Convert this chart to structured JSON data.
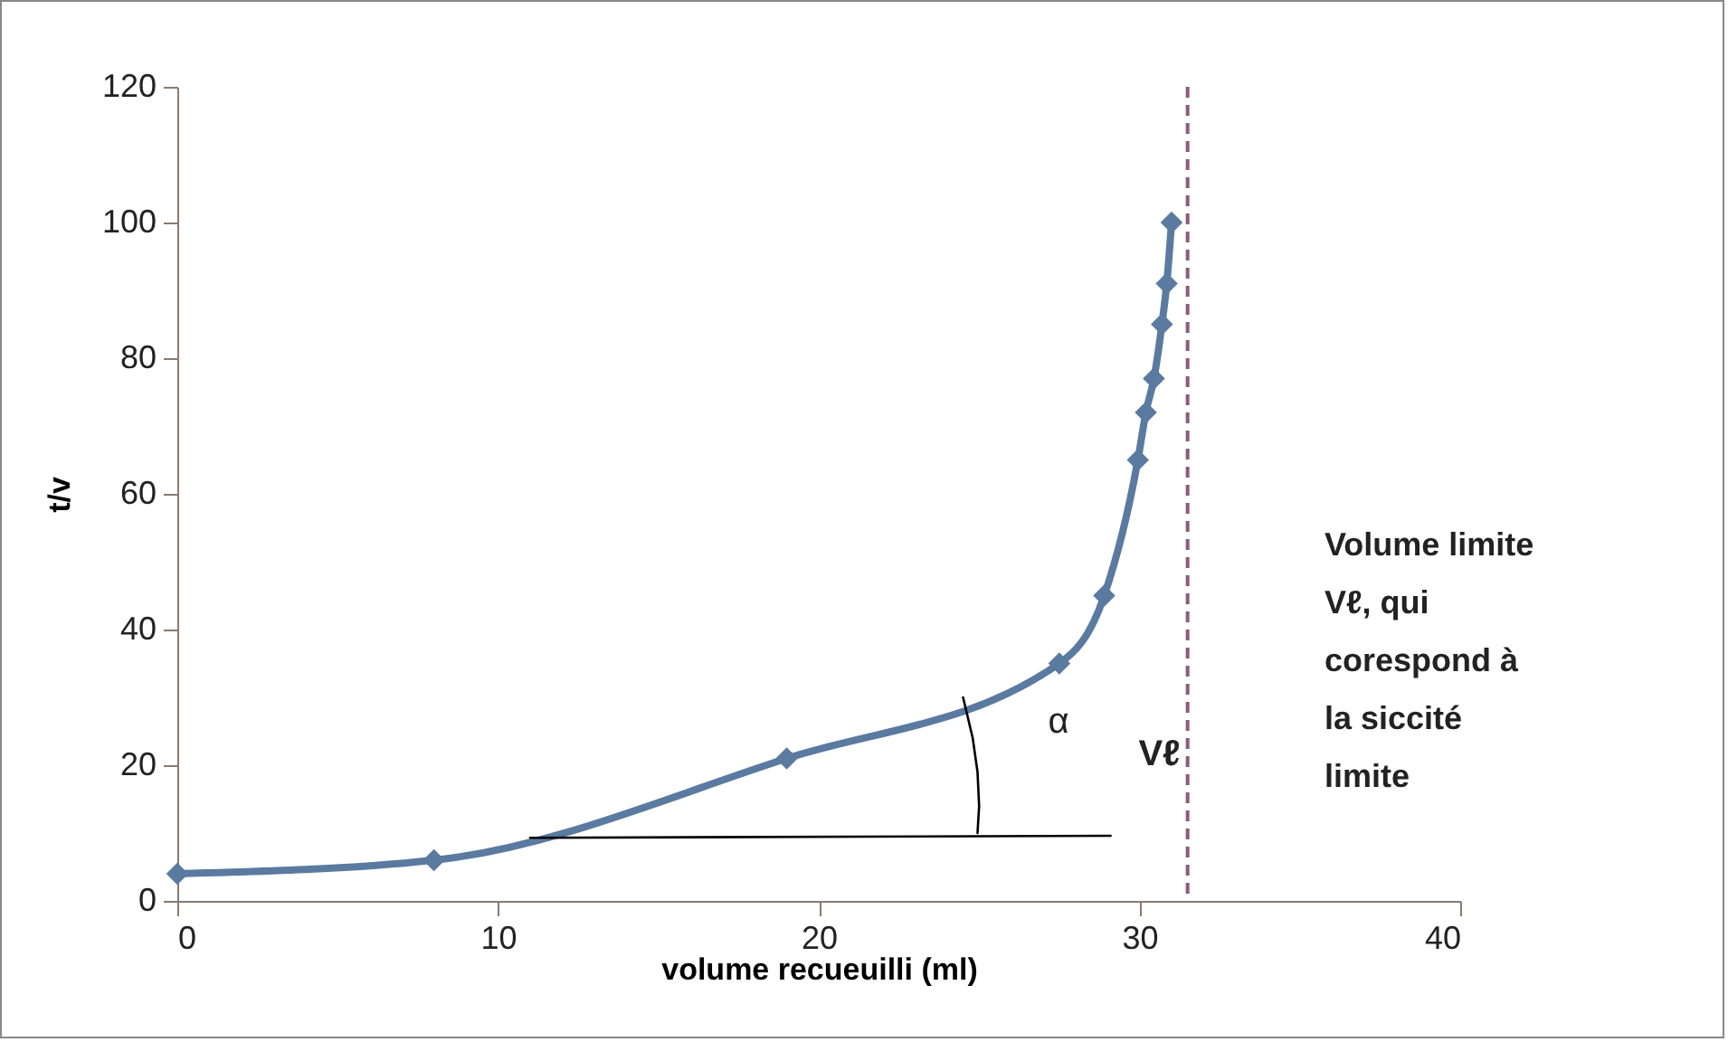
{
  "chart_data": {
    "type": "line",
    "xlabel": "volume recueuilli (ml)",
    "ylabel": "t/v",
    "xlim": [
      0,
      40
    ],
    "xticks": [
      0,
      10,
      20,
      30,
      40
    ],
    "ylim": [
      0,
      120
    ],
    "yticks": [
      0,
      20,
      40,
      60,
      80,
      100,
      120
    ],
    "grid": false,
    "marker": "diamond",
    "line_style": "solid",
    "series": [
      {
        "color": "#5a7aa0",
        "x": [
          0,
          8,
          19,
          27.5,
          28.9,
          29.95,
          30.2,
          30.45,
          30.7,
          30.85,
          31
        ],
        "values": [
          4,
          6,
          21,
          35,
          45,
          65,
          72,
          77,
          85,
          91,
          100
        ]
      },
      {
        "color": "#000000",
        "marker": "none",
        "x": [
          11,
          29.1
        ],
        "values": [
          9.3,
          9.6
        ]
      },
      {
        "color": "#000000",
        "marker": "none",
        "x": [
          24.5,
          24.8,
          24.95,
          25,
          24.95
        ],
        "values": [
          30,
          24,
          19,
          14,
          10
        ]
      }
    ],
    "ref_lines": [
      {
        "axis": "x",
        "value": 31.5,
        "label": "Vℓ",
        "color": "#8c5c7c",
        "line_style": "dashed"
      }
    ],
    "annotations": [
      "α",
      "Volume limite Vℓ, qui corespond à la siccité limite"
    ]
  }
}
